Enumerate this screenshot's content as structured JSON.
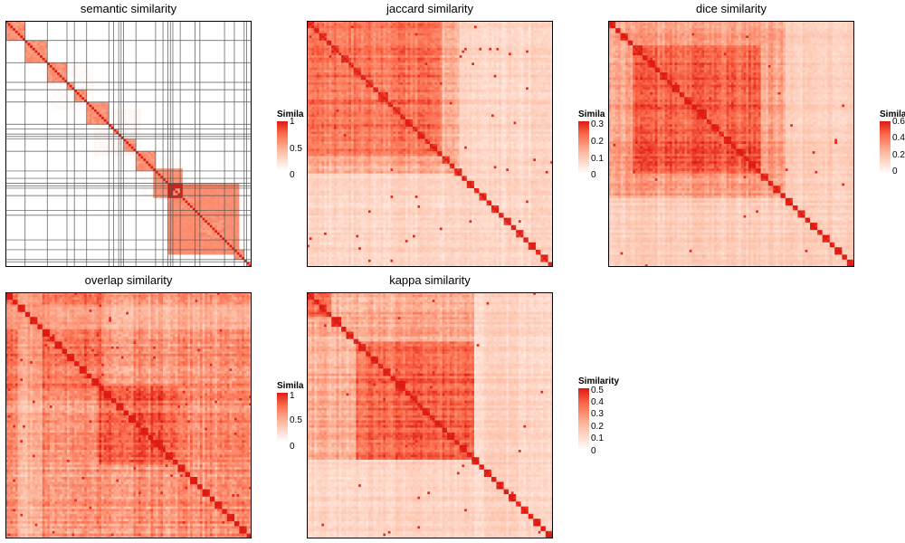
{
  "chart_data": [
    {
      "type": "heatmap",
      "title": "semantic similarity",
      "n_terms": 100,
      "value_range": [
        0,
        1
      ],
      "diagonal_value": 1,
      "grid": true,
      "legend": {
        "title": "Similarity",
        "ticks": [
          "1",
          "0.5",
          "0"
        ]
      }
    },
    {
      "type": "heatmap",
      "title": "jaccard similarity",
      "n_terms": 100,
      "value_range": [
        0,
        0.3
      ],
      "diagonal_value": 1,
      "grid": false,
      "legend": {
        "title": "Similarity",
        "ticks": [
          "0.3",
          "0.2",
          "0.1",
          "0"
        ]
      }
    },
    {
      "type": "heatmap",
      "title": "dice similarity",
      "n_terms": 100,
      "value_range": [
        0,
        0.6
      ],
      "diagonal_value": 1,
      "grid": false,
      "legend": {
        "title": "Similarity",
        "ticks": [
          "0.6",
          "0.4",
          "0.2",
          "0"
        ]
      }
    },
    {
      "type": "heatmap",
      "title": "overlap similarity",
      "n_terms": 100,
      "value_range": [
        0,
        1
      ],
      "diagonal_value": 1,
      "grid": false,
      "legend": {
        "title": "Similarity",
        "ticks": [
          "1",
          "0.5",
          "0"
        ]
      }
    },
    {
      "type": "heatmap",
      "title": "kappa similarity",
      "n_terms": 100,
      "value_range": [
        0,
        0.5
      ],
      "diagonal_value": 1,
      "grid": false,
      "legend": {
        "title": "Similarity",
        "ticks": [
          "0.5",
          "0.4",
          "0.3",
          "0.2",
          "0.1",
          "0"
        ]
      }
    }
  ],
  "colors": {
    "low": "#ffffff",
    "high": "#de1a12",
    "border": "#000000"
  }
}
